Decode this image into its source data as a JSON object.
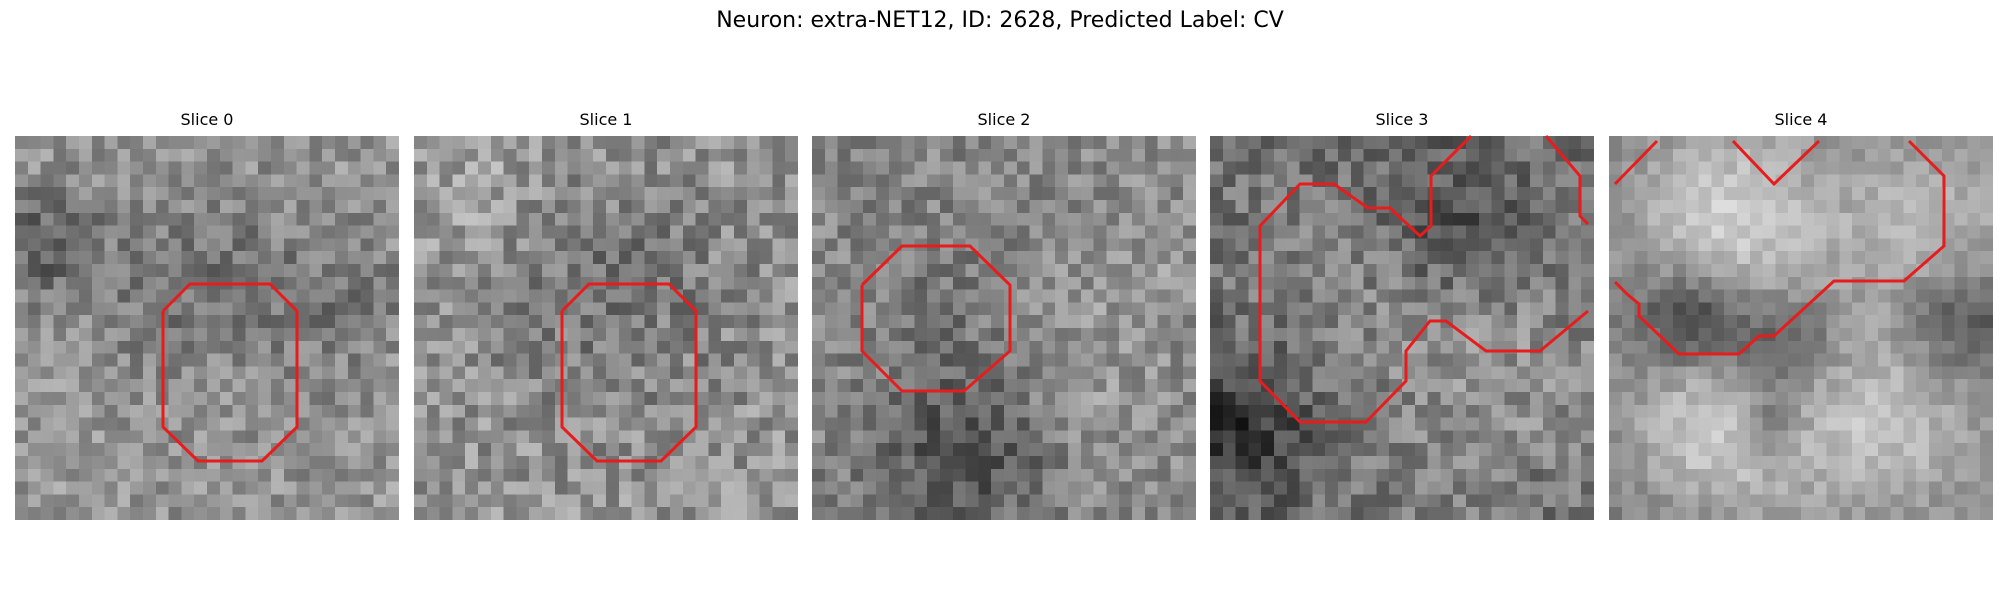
{
  "figure": {
    "title": "Neuron: extra-NET12, ID: 2628, Predicted Label: CV",
    "contour_color": "#e81c1c",
    "slices": [
      {
        "label": "Slice 0"
      },
      {
        "label": "Slice 1"
      },
      {
        "label": "Slice 2"
      },
      {
        "label": "Slice 3"
      },
      {
        "label": "Slice 4"
      }
    ]
  }
}
